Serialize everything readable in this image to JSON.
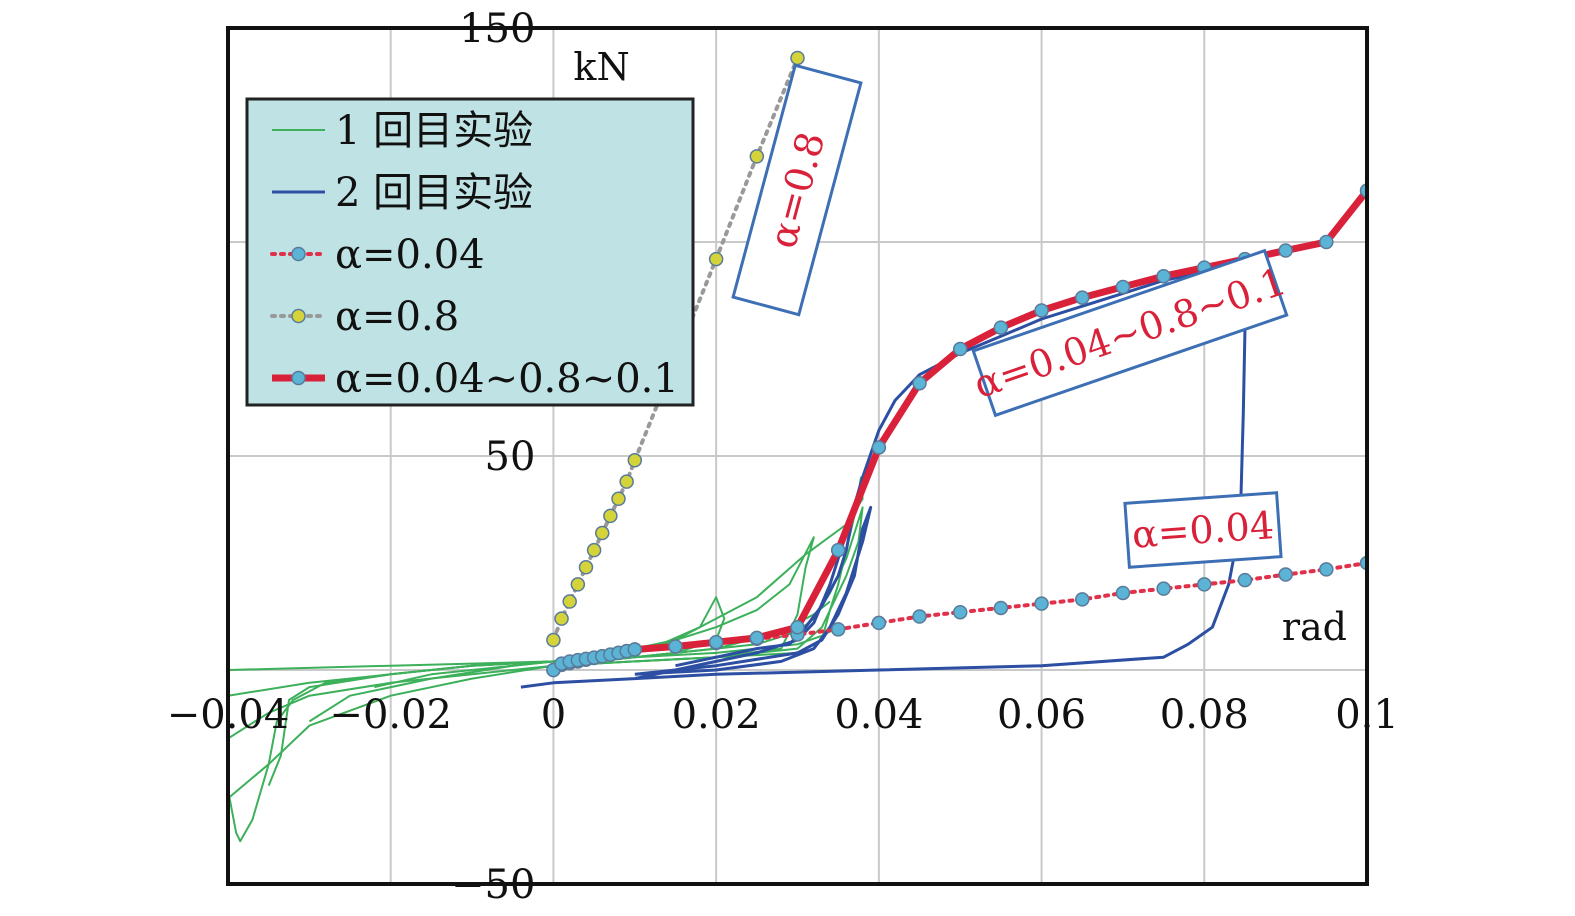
{
  "chart_data": {
    "type": "line",
    "x_unit": "rad",
    "y_unit": "kN",
    "xlim": [
      -0.04,
      0.1
    ],
    "ylim": [
      -50,
      150
    ],
    "x_ticks": [
      -0.04,
      -0.02,
      0,
      0.02,
      0.04,
      0.06,
      0.08,
      0.1
    ],
    "x_tick_labels": [
      "−0.04",
      "−0.02",
      "0",
      "0.02",
      "0.04",
      "0.06",
      "0.08",
      "0.1"
    ],
    "y_tick_labels_shown": [
      {
        "value": 150,
        "label": "150"
      },
      {
        "value": 50,
        "label": "50"
      },
      {
        "value": -50,
        "label": "−50"
      }
    ],
    "y_grid": [
      -50,
      0,
      50,
      100,
      150
    ],
    "grid": true,
    "legend_placement": "top-left",
    "series": [
      {
        "name": "1 回目实验",
        "color": "#3cb05a",
        "style": "solid-thin",
        "paths": [
          [
            [
              -0.04,
              0
            ],
            [
              -0.02,
              1
            ],
            [
              0,
              2
            ],
            [
              0.01,
              3
            ],
            [
              0.02,
              5
            ],
            [
              0.025,
              6
            ],
            [
              0.03,
              9
            ],
            [
              0.032,
              12
            ],
            [
              0.034,
              18
            ],
            [
              0.036,
              26
            ],
            [
              0.038,
              38
            ],
            [
              0.0375,
              30
            ],
            [
              0.036,
              22
            ],
            [
              0.033,
              10
            ],
            [
              0.03,
              5
            ],
            [
              0.02,
              3
            ],
            [
              0.01,
              2
            ],
            [
              0,
              1
            ],
            [
              -0.01,
              -2
            ],
            [
              -0.02,
              -6
            ],
            [
              -0.03,
              -13
            ],
            [
              -0.035,
              -22
            ],
            [
              -0.04,
              -30
            ]
          ],
          [
            [
              -0.04,
              -28
            ],
            [
              -0.039,
              -38
            ],
            [
              -0.0385,
              -40
            ],
            [
              -0.037,
              -35
            ],
            [
              -0.035,
              -22
            ],
            [
              -0.034,
              -12
            ],
            [
              -0.032,
              -7
            ],
            [
              -0.028,
              -3
            ],
            [
              -0.02,
              -1
            ],
            [
              -0.01,
              1
            ],
            [
              0,
              2
            ]
          ],
          [
            [
              -0.035,
              -27
            ],
            [
              -0.0335,
              -20
            ],
            [
              -0.0325,
              -7
            ],
            [
              -0.03,
              -4
            ],
            [
              -0.02,
              -1
            ],
            [
              -0.01,
              1
            ],
            [
              0,
              2
            ],
            [
              0.01,
              4
            ],
            [
              0.02,
              10
            ],
            [
              0.025,
              14
            ],
            [
              0.029,
              20
            ],
            [
              0.032,
              31
            ],
            [
              0.031,
              24
            ],
            [
              0.03,
              13
            ],
            [
              0.028,
              5
            ],
            [
              0.02,
              3
            ],
            [
              0.01,
              2
            ],
            [
              0,
              1
            ]
          ],
          [
            [
              -0.03,
              -12
            ],
            [
              -0.025,
              -6
            ],
            [
              -0.015,
              -2
            ],
            [
              -0.005,
              1
            ],
            [
              0.005,
              3
            ],
            [
              0.012,
              5
            ],
            [
              0.018,
              10
            ],
            [
              0.02,
              17
            ],
            [
              0.021,
              12
            ],
            [
              0.02,
              7
            ],
            [
              0.015,
              4
            ],
            [
              0.01,
              3
            ],
            [
              0,
              1
            ]
          ],
          [
            [
              -0.022,
              -4
            ],
            [
              -0.015,
              -1
            ],
            [
              -0.005,
              1
            ],
            [
              0.005,
              3
            ],
            [
              0.015,
              7
            ],
            [
              0.025,
              17
            ],
            [
              0.031,
              27
            ],
            [
              0.036,
              34
            ],
            [
              0.038,
              40
            ],
            [
              0.0378,
              45
            ],
            [
              0.037,
              36
            ],
            [
              0.036,
              28
            ],
            [
              0.035,
              20
            ],
            [
              0.034,
              14
            ],
            [
              0.033,
              7
            ],
            [
              0.03,
              4
            ],
            [
              0.02,
              3
            ],
            [
              0.01,
              2
            ],
            [
              0,
              1
            ]
          ],
          [
            [
              -0.04,
              -6
            ],
            [
              -0.03,
              -3
            ],
            [
              -0.02,
              -1
            ],
            [
              -0.01,
              1
            ],
            [
              0,
              2
            ],
            [
              0.01,
              3
            ],
            [
              0.02,
              4
            ],
            [
              0.025,
              5
            ],
            [
              0.03,
              6
            ],
            [
              0.033,
              8
            ],
            [
              0.035,
              10
            ]
          ],
          [
            [
              -0.04,
              -16
            ],
            [
              -0.035,
              -10
            ],
            [
              -0.03,
              -6
            ],
            [
              -0.02,
              -3
            ],
            [
              -0.01,
              -1
            ],
            [
              0,
              1
            ],
            [
              0.01,
              3
            ],
            [
              0.02,
              5
            ],
            [
              0.028,
              9
            ],
            [
              0.032,
              13
            ],
            [
              0.034,
              16
            ]
          ]
        ]
      },
      {
        "name": "2 回目实验",
        "color": "#2c4fa3",
        "style": "solid",
        "paths": [
          [
            [
              0.01,
              -2
            ],
            [
              0.02,
              2
            ],
            [
              0.025,
              4
            ],
            [
              0.03,
              7
            ],
            [
              0.032,
              11
            ],
            [
              0.034,
              20
            ],
            [
              0.036,
              32
            ],
            [
              0.038,
              45
            ],
            [
              0.04,
              56
            ],
            [
              0.042,
              63
            ],
            [
              0.045,
              69
            ],
            [
              0.05,
              74
            ],
            [
              0.055,
              78
            ],
            [
              0.06,
              82
            ],
            [
              0.065,
              85
            ],
            [
              0.07,
              88
            ],
            [
              0.075,
              91
            ],
            [
              0.08,
              93
            ],
            [
              0.084,
              94
            ],
            [
              0.085,
              80
            ],
            [
              0.0848,
              60
            ],
            [
              0.0845,
              40
            ],
            [
              0.084,
              30
            ],
            [
              0.083,
              20
            ],
            [
              0.081,
              10
            ],
            [
              0.078,
              6
            ],
            [
              0.075,
              3
            ],
            [
              0.06,
              1
            ],
            [
              0.04,
              0
            ],
            [
              0.02,
              -1
            ],
            [
              0.01,
              -2
            ],
            [
              0,
              -3
            ],
            [
              -0.004,
              -4
            ]
          ],
          [
            [
              0.01,
              -1
            ],
            [
              0.02,
              1
            ],
            [
              0.03,
              4
            ],
            [
              0.033,
              7
            ],
            [
              0.035,
              13
            ],
            [
              0.037,
              22
            ],
            [
              0.038,
              33
            ],
            [
              0.039,
              38
            ],
            [
              0.038,
              30
            ],
            [
              0.036,
              18
            ],
            [
              0.034,
              10
            ],
            [
              0.032,
              5
            ],
            [
              0.028,
              2
            ],
            [
              0.02,
              0
            ],
            [
              0.01,
              -1
            ]
          ],
          [
            [
              0.015,
              1
            ],
            [
              0.02,
              3
            ],
            [
              0.025,
              5
            ],
            [
              0.029,
              6
            ],
            [
              0.031,
              10
            ],
            [
              0.033,
              15
            ],
            [
              0.035,
              22
            ],
            [
              0.036,
              28
            ],
            [
              0.037,
              38
            ]
          ]
        ]
      },
      {
        "name": "α=0.04",
        "color": "#e0304a",
        "marker_color": "#5bb3d6",
        "style": "dotted",
        "x": [
          0,
          0.001,
          0.002,
          0.003,
          0.004,
          0.005,
          0.006,
          0.007,
          0.008,
          0.009,
          0.01,
          0.015,
          0.02,
          0.025,
          0.03,
          0.035,
          0.04,
          0.045,
          0.05,
          0.055,
          0.06,
          0.065,
          0.07,
          0.075,
          0.08,
          0.085,
          0.09,
          0.095,
          0.1
        ],
        "y": [
          0,
          1.2,
          1.6,
          2,
          2.4,
          2.8,
          3.2,
          3.6,
          4,
          4.4,
          4.8,
          5.5,
          6.3,
          7.3,
          8.3,
          9.5,
          11,
          12.5,
          13.5,
          14.5,
          15.5,
          16.5,
          18,
          19,
          20,
          21,
          22.3,
          23.5,
          25
        ]
      },
      {
        "name": "α=0.8",
        "color": "#999999",
        "marker_color": "#d4d43a",
        "style": "dotted",
        "x": [
          0,
          0.001,
          0.002,
          0.003,
          0.004,
          0.005,
          0.006,
          0.007,
          0.008,
          0.009,
          0.01,
          0.02,
          0.025,
          0.03
        ],
        "y": [
          7,
          12,
          16,
          20,
          24,
          28,
          32,
          36,
          40,
          44,
          49,
          96,
          120,
          143
        ]
      },
      {
        "name": "α=0.04~0.8~0.1",
        "color": "#d9213a",
        "marker_color": "#5bb3d6",
        "style": "solid-thick",
        "x": [
          0,
          0.001,
          0.002,
          0.003,
          0.004,
          0.005,
          0.006,
          0.007,
          0.008,
          0.009,
          0.01,
          0.015,
          0.02,
          0.025,
          0.03,
          0.035,
          0.04,
          0.045,
          0.05,
          0.055,
          0.06,
          0.065,
          0.07,
          0.075,
          0.08,
          0.085,
          0.09,
          0.095,
          0.1
        ],
        "y": [
          0,
          1.5,
          2,
          2.3,
          2.6,
          2.9,
          3.2,
          3.6,
          4,
          4.4,
          4.8,
          5.5,
          6.5,
          7.5,
          10,
          28,
          52,
          67,
          75,
          80,
          84,
          87,
          89.5,
          92,
          94,
          96,
          98,
          100,
          112
        ]
      }
    ],
    "annotations": [
      {
        "text": "α=0.8",
        "near": [
          0.03,
          140
        ],
        "rotation": "steep"
      },
      {
        "text": "α=0.04~0.8~0.1",
        "near": [
          0.08,
          78
        ]
      },
      {
        "text": "α=0.04",
        "near": [
          0.08,
          32
        ]
      }
    ]
  }
}
